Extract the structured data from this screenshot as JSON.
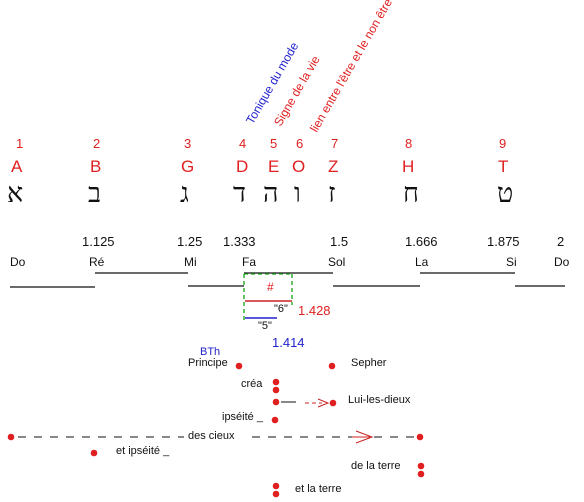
{
  "rotated_labels": [
    {
      "text": "Tonique du mode",
      "color": "#2222cc"
    },
    {
      "text": "Signe de la vie",
      "color": "#e02020"
    },
    {
      "text": "lien entre l'être et le non être",
      "color": "#e02020"
    }
  ],
  "numbers": [
    "1",
    "2",
    "3",
    "4",
    "5",
    "6",
    "7",
    "8",
    "9"
  ],
  "letters": [
    "A",
    "B",
    "G",
    "D",
    "E",
    "O",
    "Z",
    "H",
    "T"
  ],
  "hebrew": [
    "א",
    "ב",
    "ג",
    "ד",
    "ה",
    "ו",
    "ז",
    "ח",
    "ט"
  ],
  "ratios": [
    "1.125",
    "1.25",
    "1.333",
    "1.5",
    "1.666",
    "1.875",
    "2"
  ],
  "notes": [
    "Do",
    "Ré",
    "Mi",
    "Fa",
    "Sol",
    "La",
    "Si",
    "Do"
  ],
  "sharp": "#",
  "six_label": "\"6\"",
  "five_label": "\"5\"",
  "ratio_red": "1.428",
  "ratio_blue": "1.414",
  "bth": "BTh",
  "words": [
    "Principe",
    "créa",
    "ipséité _",
    "des cieux",
    "et ipséité _",
    "Sepher",
    "Lui-les-dieux",
    "de la terre",
    "et la terre"
  ],
  "colors": {
    "red": "#e02020",
    "blue": "#2222cc",
    "green": "#22aa22",
    "black": "#111111"
  }
}
